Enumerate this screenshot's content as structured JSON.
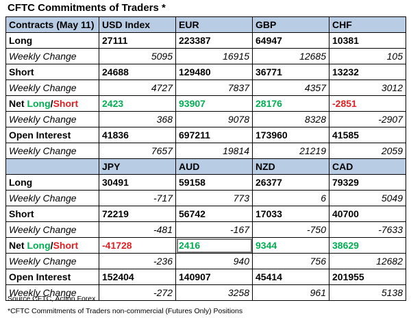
{
  "title": "CFTC Commitments of Traders *",
  "labels": {
    "contracts": "Contracts (May 11)",
    "long": "Long",
    "short": "Short",
    "weekly_change": "Weekly Change",
    "net_prefix": "Net ",
    "net_long": "Long",
    "net_slash": "/",
    "net_short": "Short",
    "open_interest": "Open Interest"
  },
  "colors": {
    "header_bg": "#b8cce4",
    "positive": "#00b050",
    "negative": "#e02020"
  },
  "block1": {
    "currencies": [
      "USD Index",
      "EUR",
      "GBP",
      "CHF"
    ],
    "long": [
      "27111",
      "223387",
      "64947",
      "10381"
    ],
    "long_change": [
      "5095",
      "16915",
      "12685",
      "105"
    ],
    "short": [
      "24688",
      "129480",
      "36771",
      "13232"
    ],
    "short_change": [
      "4727",
      "7837",
      "4357",
      "3012"
    ],
    "net": [
      "2423",
      "93907",
      "28176",
      "-2851"
    ],
    "net_change": [
      "368",
      "9078",
      "8328",
      "-2907"
    ],
    "oi": [
      "41836",
      "697211",
      "173960",
      "41585"
    ],
    "oi_change": [
      "7657",
      "19814",
      "21219",
      "2059"
    ]
  },
  "block2": {
    "currencies": [
      "JPY",
      "AUD",
      "NZD",
      "CAD"
    ],
    "long": [
      "30491",
      "59158",
      "26377",
      "79329"
    ],
    "long_change": [
      "-717",
      "773",
      "6",
      "5049"
    ],
    "short": [
      "72219",
      "56742",
      "17033",
      "40700"
    ],
    "short_change": [
      "-481",
      "-167",
      "-750",
      "-7633"
    ],
    "net": [
      "-41728",
      "2416",
      "9344",
      "38629"
    ],
    "net_change": [
      "-236",
      "940",
      "756",
      "12682"
    ],
    "oi": [
      "152404",
      "140907",
      "45414",
      "201955"
    ],
    "oi_change": [
      "-272",
      "3258",
      "961",
      "5138"
    ]
  },
  "footer": {
    "source": "Source CFTC, Action Forex",
    "note": "*CFTC Commitments of Traders non-commercial (Futures Only) Positions"
  }
}
